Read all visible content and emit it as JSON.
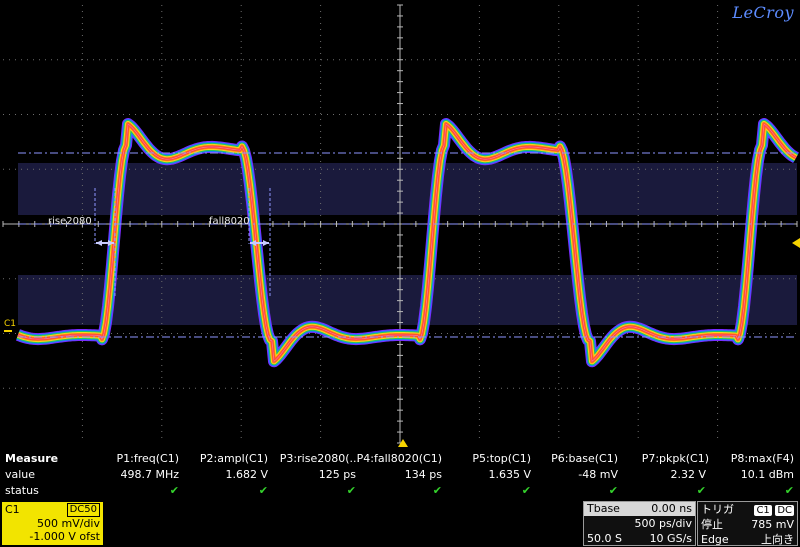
{
  "brand": "LeCroy",
  "channel_marker": "C1",
  "annotations": {
    "rise": "rise2080",
    "fall": "fall8020"
  },
  "measure": {
    "title": "Measure",
    "row_labels": {
      "value": "value",
      "status": "status"
    },
    "params": [
      {
        "name": "P1:freq(C1)",
        "value": "498.7 MHz",
        "status": "ok"
      },
      {
        "name": "P2:ampl(C1)",
        "value": "1.682 V",
        "status": "ok"
      },
      {
        "name": "P3:rise2080(...",
        "value": "125 ps",
        "status": "ok"
      },
      {
        "name": "P4:fall8020(C1)",
        "value": "134 ps",
        "status": "ok"
      },
      {
        "name": "P5:top(C1)",
        "value": "1.635 V",
        "status": "ok"
      },
      {
        "name": "P6:base(C1)",
        "value": "-48 mV",
        "status": "ok"
      },
      {
        "name": "P7:pkpk(C1)",
        "value": "2.32 V",
        "status": "ok"
      },
      {
        "name": "P8:max(F4)",
        "value": "10.1 dBm",
        "status": "ok"
      }
    ],
    "check_glyph": "✔"
  },
  "channel_box": {
    "name": "C1",
    "coupling": "DC50",
    "scale": "500 mV/div",
    "offset": "-1.000 V ofst"
  },
  "timebase": {
    "label": "Tbase",
    "delay": "0.00 ns",
    "scale": "500 ps/div",
    "memory": "50.0 S",
    "rate": "10 GS/s"
  },
  "trigger": {
    "label": "トリガ",
    "source": "C1",
    "coupling": "DC",
    "state": "停止",
    "level": "785 mV",
    "type": "Edge",
    "slope": "上向き"
  },
  "colors": {
    "grid": "#6d6d6d",
    "cursor": "#8e96ff",
    "band": "#1a1a3c",
    "trigger": "#f6d300",
    "check": "#34d32c"
  }
}
